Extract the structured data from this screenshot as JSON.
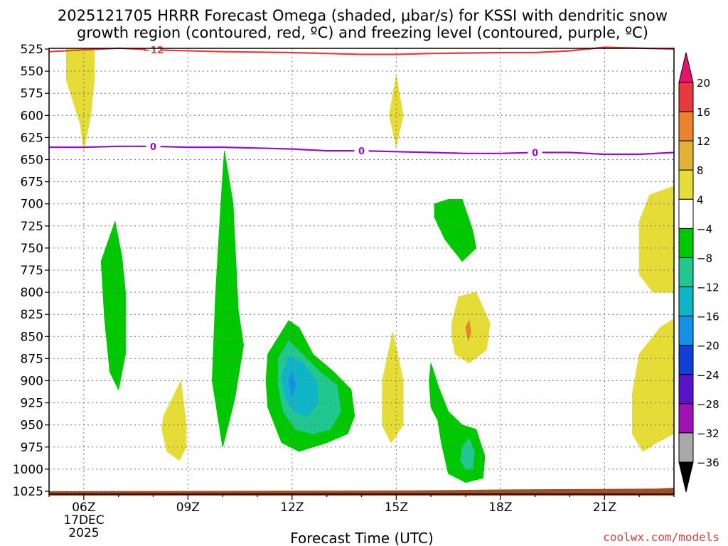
{
  "chart_data": {
    "type": "contourf",
    "title_line1": "2025121705 HRRR Forecast Omega (shaded, μbar/s) for KSSI with dendritic snow",
    "title_line2": "growth region (contoured, red, ºC) and freezing level (contoured, purple, ºC)",
    "xlabel": "Forecast Time (UTC)",
    "credit": "coolwx.com/models",
    "x_ticks": [
      "06Z",
      "09Z",
      "12Z",
      "15Z",
      "18Z",
      "21Z"
    ],
    "x_first_date": "17DEC",
    "x_first_year": "2025",
    "x_range_hours": [
      5.0,
      23.0
    ],
    "y_ticks": [
      "525",
      "550",
      "575",
      "600",
      "625",
      "650",
      "675",
      "700",
      "725",
      "750",
      "775",
      "800",
      "825",
      "850",
      "875",
      "900",
      "925",
      "950",
      "975",
      "1000",
      "1025"
    ],
    "y_range_hpa": [
      525,
      1025
    ],
    "colorbar_levels": [
      "20",
      "16",
      "12",
      "8",
      "4",
      "−4",
      "−8",
      "−12",
      "−16",
      "−20",
      "−24",
      "−28",
      "−32",
      "−36"
    ],
    "colorbar_colors": [
      "#e8383c",
      "#e8842c",
      "#e2b236",
      "#e6dc38",
      "#ffffff",
      "#00c800",
      "#20c890",
      "#10b4c8",
      "#1490e6",
      "#1040d8",
      "#5a14c8",
      "#a012b4",
      "#a8a8a8"
    ],
    "colorbar_top_color": "#e8126e",
    "colorbar_bottom_color": "#000000",
    "contour_lines": [
      {
        "name": "dendritic -12C",
        "color": "#e8383c",
        "label": "−12",
        "label_positions": [
          8.0
        ],
        "path": [
          [
            5.0,
            528
          ],
          [
            6.0,
            526
          ],
          [
            7.0,
            524
          ],
          [
            8.0,
            526
          ],
          [
            10.0,
            528
          ],
          [
            12.0,
            529
          ],
          [
            13.0,
            530
          ],
          [
            14.0,
            531
          ],
          [
            15.0,
            531
          ],
          [
            16.0,
            530
          ],
          [
            18.0,
            529
          ],
          [
            19.0,
            529
          ],
          [
            20.0,
            527
          ],
          [
            21.0,
            523
          ],
          [
            23.0,
            525
          ]
        ]
      },
      {
        "name": "freezing level 0C",
        "color": "#9012c8",
        "label": "0",
        "label_positions": [
          8.0,
          14.0,
          19.0
        ],
        "path": [
          [
            5.0,
            636
          ],
          [
            6.0,
            636
          ],
          [
            7.0,
            635
          ],
          [
            8.0,
            635
          ],
          [
            9.0,
            636
          ],
          [
            10.0,
            636
          ],
          [
            11.0,
            637
          ],
          [
            12.0,
            638
          ],
          [
            13.0,
            640
          ],
          [
            14.0,
            640
          ],
          [
            15.0,
            641
          ],
          [
            16.0,
            642
          ],
          [
            17.0,
            643
          ],
          [
            18.0,
            643
          ],
          [
            19.0,
            642
          ],
          [
            20.0,
            642
          ],
          [
            21.0,
            644
          ],
          [
            22.0,
            644
          ],
          [
            23.0,
            642
          ]
        ]
      }
    ],
    "omega_regions": [
      {
        "fill": "#e6dc38",
        "polygon": [
          [
            5.5,
            525
          ],
          [
            6.3,
            525
          ],
          [
            6.3,
            560
          ],
          [
            6.2,
            600
          ],
          [
            6.0,
            640
          ],
          [
            5.9,
            610
          ],
          [
            5.5,
            560
          ]
        ]
      },
      {
        "fill": "#e6dc38",
        "polygon": [
          [
            14.8,
            600
          ],
          [
            15.0,
            555
          ],
          [
            15.2,
            600
          ],
          [
            15.0,
            635
          ]
        ]
      },
      {
        "fill": "#00c800",
        "polygon": [
          [
            9.8,
            800
          ],
          [
            9.95,
            700
          ],
          [
            10.05,
            640
          ],
          [
            10.3,
            700
          ],
          [
            10.45,
            820
          ],
          [
            10.6,
            860
          ],
          [
            10.35,
            920
          ],
          [
            10.0,
            975
          ],
          [
            9.7,
            900
          ]
        ]
      },
      {
        "fill": "#00c800",
        "polygon": [
          [
            6.5,
            765
          ],
          [
            6.9,
            720
          ],
          [
            7.1,
            760
          ],
          [
            7.2,
            800
          ],
          [
            7.2,
            870
          ],
          [
            7.0,
            910
          ],
          [
            6.75,
            890
          ],
          [
            6.6,
            830
          ]
        ]
      },
      {
        "fill": "#e6dc38",
        "polygon": [
          [
            8.3,
            940
          ],
          [
            8.8,
            900
          ],
          [
            8.95,
            950
          ],
          [
            8.95,
            975
          ],
          [
            8.75,
            990
          ],
          [
            8.4,
            980
          ],
          [
            8.25,
            955
          ]
        ]
      },
      {
        "fill": "#00c800",
        "polygon": [
          [
            11.3,
            870
          ],
          [
            11.9,
            832
          ],
          [
            12.2,
            840
          ],
          [
            12.6,
            870
          ],
          [
            13.2,
            890
          ],
          [
            13.7,
            910
          ],
          [
            13.8,
            940
          ],
          [
            13.6,
            960
          ],
          [
            13.0,
            970
          ],
          [
            12.2,
            980
          ],
          [
            11.7,
            970
          ],
          [
            11.3,
            930
          ],
          [
            11.25,
            900
          ]
        ]
      },
      {
        "fill": "#20c890",
        "polygon": [
          [
            11.6,
            875
          ],
          [
            11.9,
            855
          ],
          [
            12.3,
            870
          ],
          [
            12.8,
            890
          ],
          [
            13.3,
            905
          ],
          [
            13.4,
            935
          ],
          [
            13.1,
            955
          ],
          [
            12.6,
            960
          ],
          [
            12.1,
            955
          ],
          [
            11.75,
            935
          ],
          [
            11.6,
            905
          ]
        ]
      },
      {
        "fill": "#10b4c8",
        "polygon": [
          [
            11.7,
            895
          ],
          [
            11.9,
            872
          ],
          [
            12.3,
            880
          ],
          [
            12.7,
            900
          ],
          [
            12.75,
            925
          ],
          [
            12.45,
            940
          ],
          [
            12.05,
            935
          ],
          [
            11.8,
            918
          ]
        ]
      },
      {
        "fill": "#1490e6",
        "polygon": [
          [
            11.9,
            900
          ],
          [
            12.0,
            890
          ],
          [
            12.1,
            905
          ],
          [
            12.0,
            918
          ]
        ]
      },
      {
        "fill": "#e6dc38",
        "polygon": [
          [
            14.6,
            900
          ],
          [
            14.9,
            845
          ],
          [
            15.2,
            900
          ],
          [
            15.2,
            950
          ],
          [
            14.85,
            970
          ],
          [
            14.6,
            950
          ]
        ]
      },
      {
        "fill": "#00c800",
        "polygon": [
          [
            16.1,
            700
          ],
          [
            16.5,
            695
          ],
          [
            16.9,
            695
          ],
          [
            17.2,
            730
          ],
          [
            17.3,
            750
          ],
          [
            16.9,
            765
          ],
          [
            16.4,
            740
          ],
          [
            16.1,
            715
          ]
        ]
      },
      {
        "fill": "#e6dc38",
        "polygon": [
          [
            16.6,
            835
          ],
          [
            16.8,
            805
          ],
          [
            17.3,
            800
          ],
          [
            17.7,
            835
          ],
          [
            17.6,
            865
          ],
          [
            17.1,
            880
          ],
          [
            16.7,
            870
          ],
          [
            16.6,
            850
          ]
        ]
      },
      {
        "fill": "#e8842c",
        "polygon": [
          [
            17.0,
            840
          ],
          [
            17.1,
            832
          ],
          [
            17.15,
            845
          ],
          [
            17.08,
            855
          ]
        ]
      },
      {
        "fill": "#00c800",
        "polygon": [
          [
            16.0,
            880
          ],
          [
            16.2,
            905
          ],
          [
            16.5,
            935
          ],
          [
            16.9,
            950
          ],
          [
            17.3,
            955
          ],
          [
            17.55,
            985
          ],
          [
            17.5,
            1010
          ],
          [
            17.0,
            1015
          ],
          [
            16.5,
            1005
          ],
          [
            16.3,
            970
          ],
          [
            16.2,
            945
          ],
          [
            16.0,
            930
          ],
          [
            15.95,
            900
          ]
        ]
      },
      {
        "fill": "#20c890",
        "polygon": [
          [
            16.9,
            975
          ],
          [
            17.1,
            965
          ],
          [
            17.25,
            980
          ],
          [
            17.2,
            1000
          ],
          [
            17.0,
            1000
          ],
          [
            16.85,
            990
          ]
        ]
      },
      {
        "fill": "#e6dc38",
        "polygon": [
          [
            22.0,
            720
          ],
          [
            22.3,
            690
          ],
          [
            23.0,
            680
          ],
          [
            23.0,
            800
          ],
          [
            22.4,
            800
          ],
          [
            22.0,
            780
          ]
        ]
      },
      {
        "fill": "#e6dc38",
        "polygon": [
          [
            21.8,
            915
          ],
          [
            22.0,
            870
          ],
          [
            22.6,
            840
          ],
          [
            23.0,
            830
          ],
          [
            23.0,
            960
          ],
          [
            22.5,
            970
          ],
          [
            22.1,
            980
          ],
          [
            21.8,
            960
          ]
        ]
      }
    ],
    "ground_color": "#a05028"
  }
}
